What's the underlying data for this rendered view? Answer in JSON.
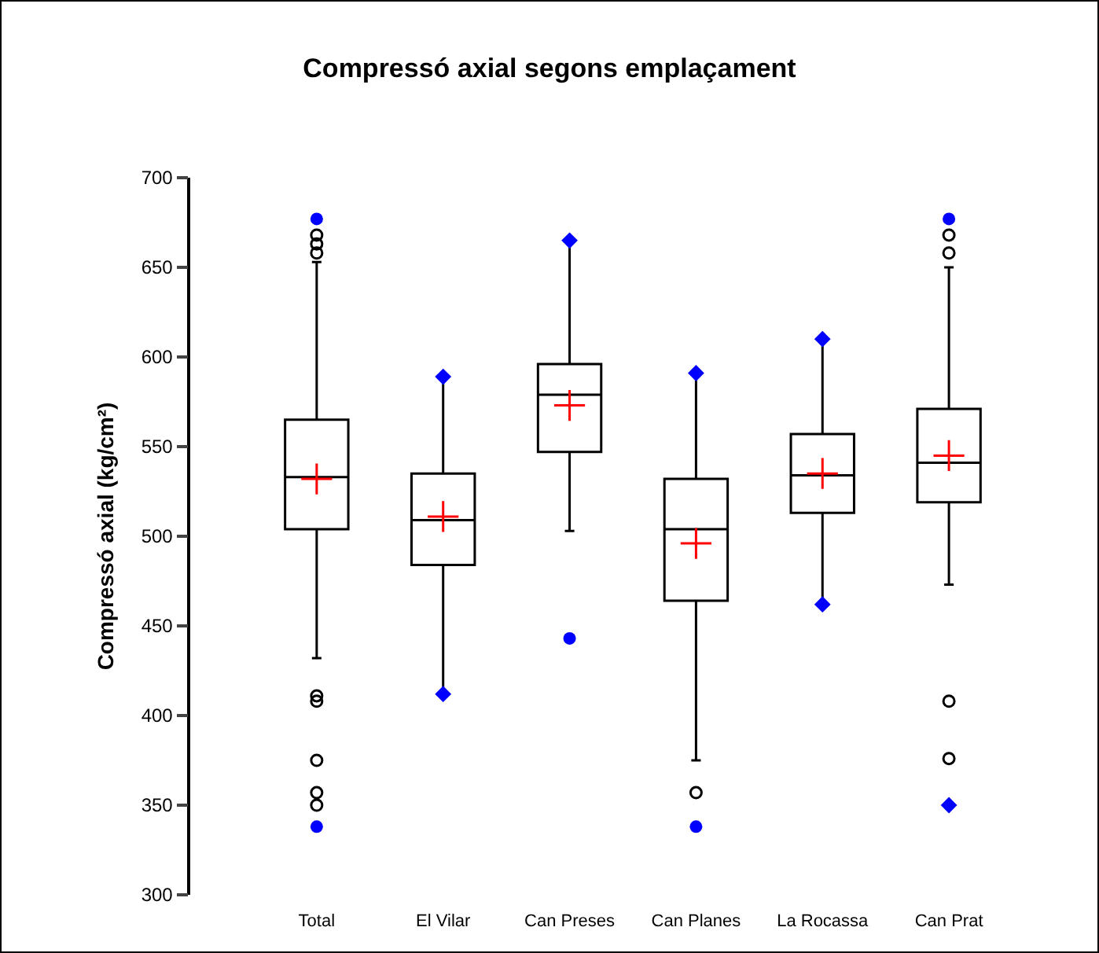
{
  "chart_data": {
    "type": "box",
    "title": "Compressó axial segons emplaçament",
    "ylabel": "Compressó axial (kg/cm²)",
    "categories": [
      "Total",
      "El Vilar",
      "Can Preses",
      "Can Planes",
      "La Rocassa",
      "Can Prat"
    ],
    "ylim": [
      300,
      700
    ],
    "yticks": [
      300,
      350,
      400,
      450,
      500,
      550,
      600,
      650,
      700
    ],
    "boxes": [
      {
        "low": 432,
        "q1": 504,
        "median": 533,
        "q3": 565,
        "high": 653,
        "mean": 532,
        "outliers": [
          658,
          663,
          668,
          411,
          408,
          375,
          357,
          350
        ]
      },
      {
        "low": 412,
        "q1": 484,
        "median": 509,
        "q3": 535,
        "high": 589,
        "mean": 511
      },
      {
        "low": 503,
        "q1": 547,
        "median": 579,
        "q3": 596,
        "high": 665,
        "mean": 573
      },
      {
        "low": 375,
        "q1": 464,
        "median": 504,
        "q3": 532,
        "high": 591,
        "mean": 496,
        "outliers": [
          357
        ]
      },
      {
        "low": 462,
        "q1": 513,
        "median": 534,
        "q3": 557,
        "high": 610,
        "mean": 535
      },
      {
        "low": 473,
        "q1": 519,
        "median": 541,
        "q3": 571,
        "high": 650,
        "mean": 545,
        "outliers": [
          668,
          658,
          408,
          376
        ]
      }
    ],
    "series": [
      {
        "type": "scatter",
        "color": "#0000ff",
        "marker": "circle",
        "x": [
          "Total",
          "Total",
          "Can Preses",
          "Can Planes",
          "Can Prat"
        ],
        "values": [
          677,
          338,
          443,
          338,
          677
        ]
      },
      {
        "type": "scatter",
        "color": "#0000ff",
        "marker": "diamond",
        "x": [
          "El Vilar",
          "El Vilar",
          "Can Preses",
          "Can Planes",
          "La Rocassa",
          "La Rocassa",
          "Can Prat"
        ],
        "values": [
          589,
          412,
          665,
          591,
          610,
          462,
          350
        ]
      }
    ]
  }
}
